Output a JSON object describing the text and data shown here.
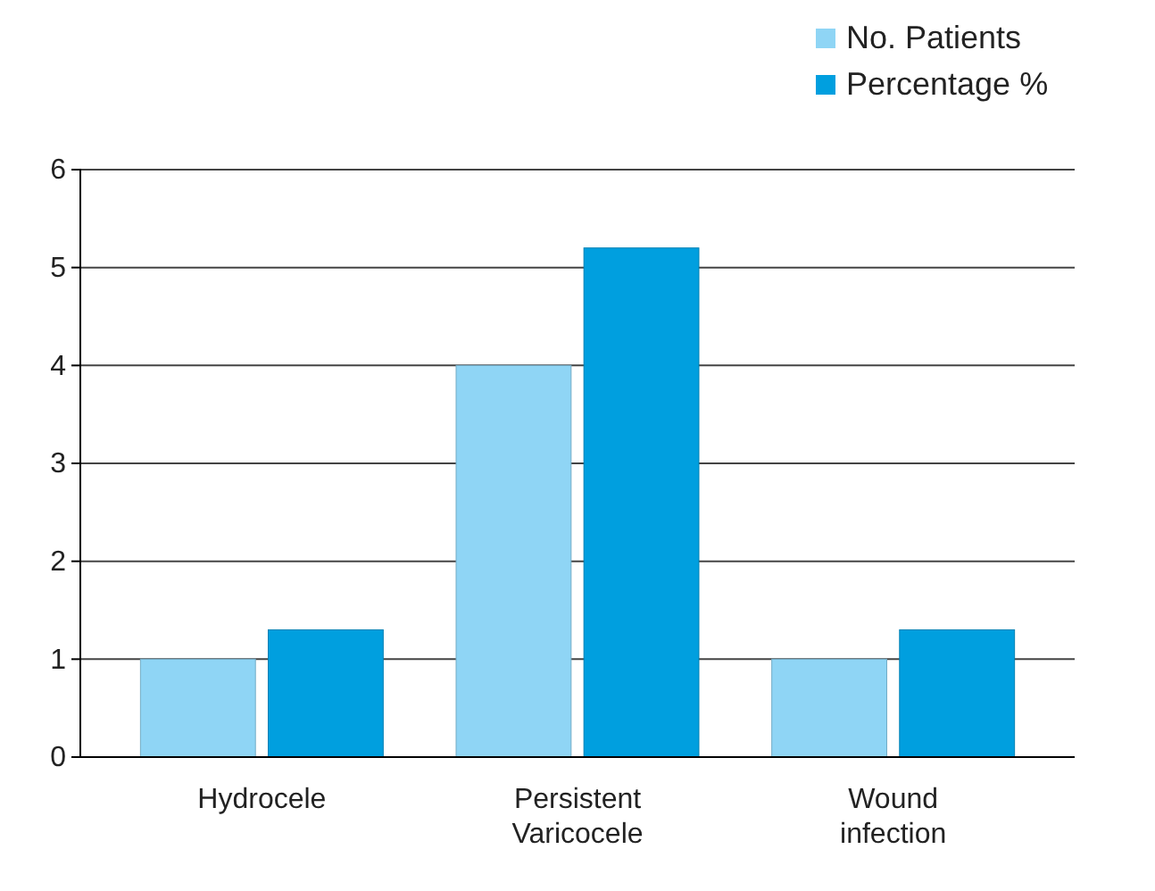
{
  "chart_data": {
    "type": "bar",
    "categories": [
      "Hydrocele",
      "Persistent Varicocele",
      "Wound infection"
    ],
    "series": [
      {
        "name": "No. Patients",
        "color": "#8fd5f5",
        "values": [
          1,
          4,
          1
        ]
      },
      {
        "name": "Percentage %",
        "color": "#009fdf",
        "values": [
          1.3,
          5.2,
          1.3
        ]
      }
    ],
    "ylim": [
      0,
      6
    ],
    "yticks": [
      0,
      1,
      2,
      3,
      4,
      5,
      6
    ],
    "grid": "y",
    "legend": "top right"
  }
}
